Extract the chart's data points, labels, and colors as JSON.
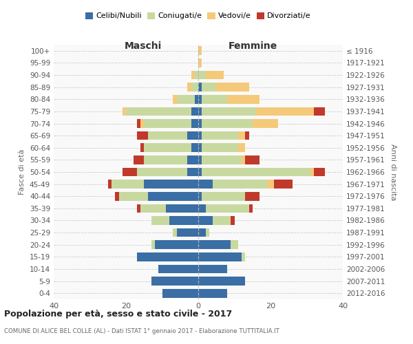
{
  "age_groups": [
    "100+",
    "95-99",
    "90-94",
    "85-89",
    "80-84",
    "75-79",
    "70-74",
    "65-69",
    "60-64",
    "55-59",
    "50-54",
    "45-49",
    "40-44",
    "35-39",
    "30-34",
    "25-29",
    "20-24",
    "15-19",
    "10-14",
    "5-9",
    "0-4"
  ],
  "birth_years": [
    "≤ 1916",
    "1917-1921",
    "1922-1926",
    "1927-1931",
    "1932-1936",
    "1937-1941",
    "1942-1946",
    "1947-1951",
    "1952-1956",
    "1957-1961",
    "1962-1966",
    "1967-1971",
    "1972-1976",
    "1977-1981",
    "1982-1986",
    "1987-1991",
    "1992-1996",
    "1997-2001",
    "2002-2006",
    "2007-2011",
    "2012-2016"
  ],
  "males": {
    "celibi": [
      0,
      0,
      0,
      0,
      1,
      2,
      2,
      3,
      2,
      3,
      3,
      15,
      14,
      9,
      8,
      6,
      12,
      17,
      11,
      13,
      10
    ],
    "coniugati": [
      0,
      0,
      1,
      2,
      5,
      18,
      13,
      11,
      13,
      12,
      14,
      9,
      8,
      7,
      5,
      1,
      1,
      0,
      0,
      0,
      0
    ],
    "vedovi": [
      0,
      0,
      1,
      1,
      1,
      1,
      1,
      0,
      0,
      0,
      0,
      0,
      0,
      0,
      0,
      0,
      0,
      0,
      0,
      0,
      0
    ],
    "divorziati": [
      0,
      0,
      0,
      0,
      0,
      0,
      1,
      3,
      1,
      3,
      4,
      1,
      1,
      1,
      0,
      0,
      0,
      0,
      0,
      0,
      0
    ]
  },
  "females": {
    "nubili": [
      0,
      0,
      0,
      1,
      1,
      1,
      1,
      1,
      1,
      1,
      1,
      4,
      1,
      2,
      4,
      2,
      9,
      12,
      8,
      13,
      8
    ],
    "coniugate": [
      0,
      0,
      2,
      4,
      7,
      15,
      14,
      10,
      10,
      11,
      30,
      15,
      12,
      12,
      5,
      1,
      2,
      1,
      0,
      0,
      0
    ],
    "vedove": [
      1,
      1,
      5,
      9,
      9,
      16,
      7,
      2,
      2,
      1,
      1,
      2,
      0,
      0,
      0,
      0,
      0,
      0,
      0,
      0,
      0
    ],
    "divorziate": [
      0,
      0,
      0,
      0,
      0,
      3,
      0,
      1,
      0,
      4,
      3,
      5,
      4,
      1,
      1,
      0,
      0,
      0,
      0,
      0,
      0
    ]
  },
  "colors": {
    "celibi": "#3A6EA5",
    "coniugati": "#C8D9A0",
    "vedovi": "#F5C97A",
    "divorziati": "#C0392B"
  },
  "xlim": 40,
  "title": "Popolazione per età, sesso e stato civile - 2017",
  "subtitle": "COMUNE DI ALICE BEL COLLE (AL) - Dati ISTAT 1° gennaio 2017 - Elaborazione TUTTITALIA.IT",
  "ylabel_left": "Fasce di età",
  "ylabel_right": "Anni di nascita",
  "xlabel_left": "Maschi",
  "xlabel_right": "Femmine"
}
